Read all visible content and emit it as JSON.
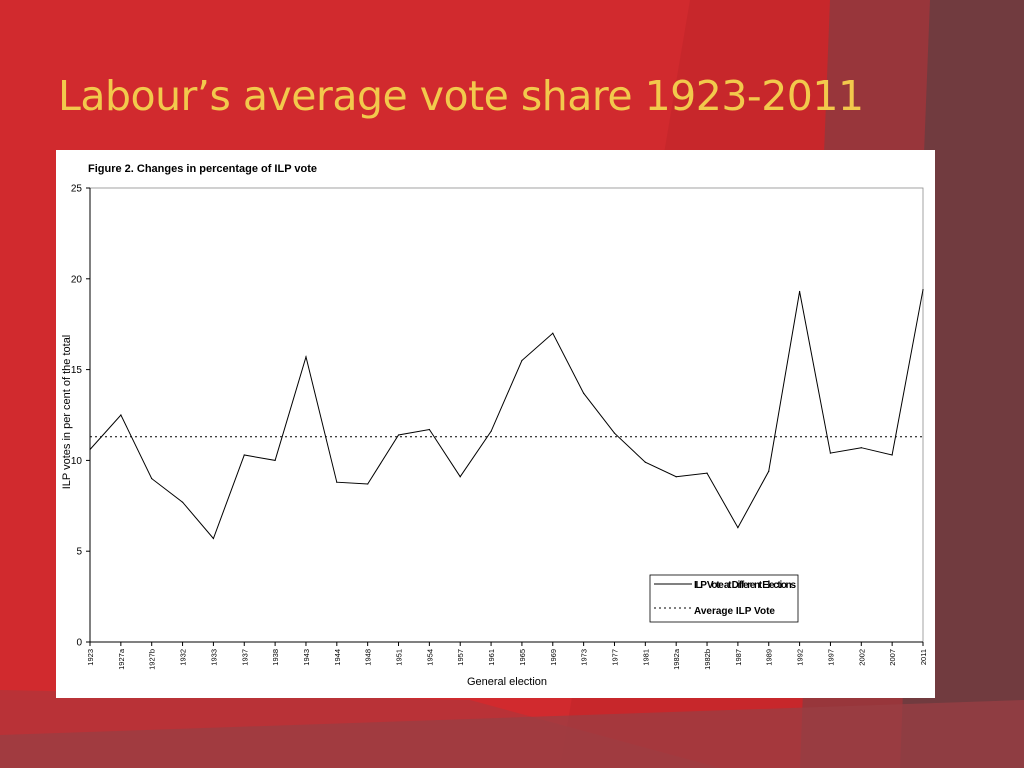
{
  "slide": {
    "title": "Labour’s average vote share 1923-2011",
    "background_color": "#d12a2e",
    "title_color": "#f2c94c"
  },
  "chart_data": {
    "type": "line",
    "title": "Figure 2. Changes in percentage of ILP vote",
    "xlabel": "General election",
    "ylabel": "ILP votes in per cent of the total",
    "ylim": [
      0,
      25
    ],
    "yticks": [
      0,
      5,
      10,
      15,
      20,
      25
    ],
    "categories": [
      "1923",
      "1927a",
      "1927b",
      "1932",
      "1933",
      "1937",
      "1938",
      "1943",
      "1944",
      "1948",
      "1951",
      "1954",
      "1957",
      "1961",
      "1965",
      "1969",
      "1973",
      "1977",
      "1981",
      "1982a",
      "1982b",
      "1987",
      "1989",
      "1992",
      "1997",
      "2002",
      "2007",
      "2011"
    ],
    "series": [
      {
        "name": "ILP Vote at Different Elections",
        "style": "solid",
        "values": [
          10.6,
          12.5,
          9.0,
          7.7,
          5.7,
          10.3,
          10.0,
          15.7,
          8.8,
          8.7,
          11.4,
          11.7,
          9.1,
          11.6,
          15.5,
          17.0,
          13.7,
          11.5,
          9.9,
          9.1,
          9.3,
          6.3,
          9.4,
          19.3,
          10.4,
          10.7,
          10.3,
          19.4
        ]
      }
    ],
    "average": {
      "name": "Average ILP Vote",
      "style": "dotted",
      "value": 11.3
    },
    "legend_position": "bottom-right",
    "grid": false
  }
}
